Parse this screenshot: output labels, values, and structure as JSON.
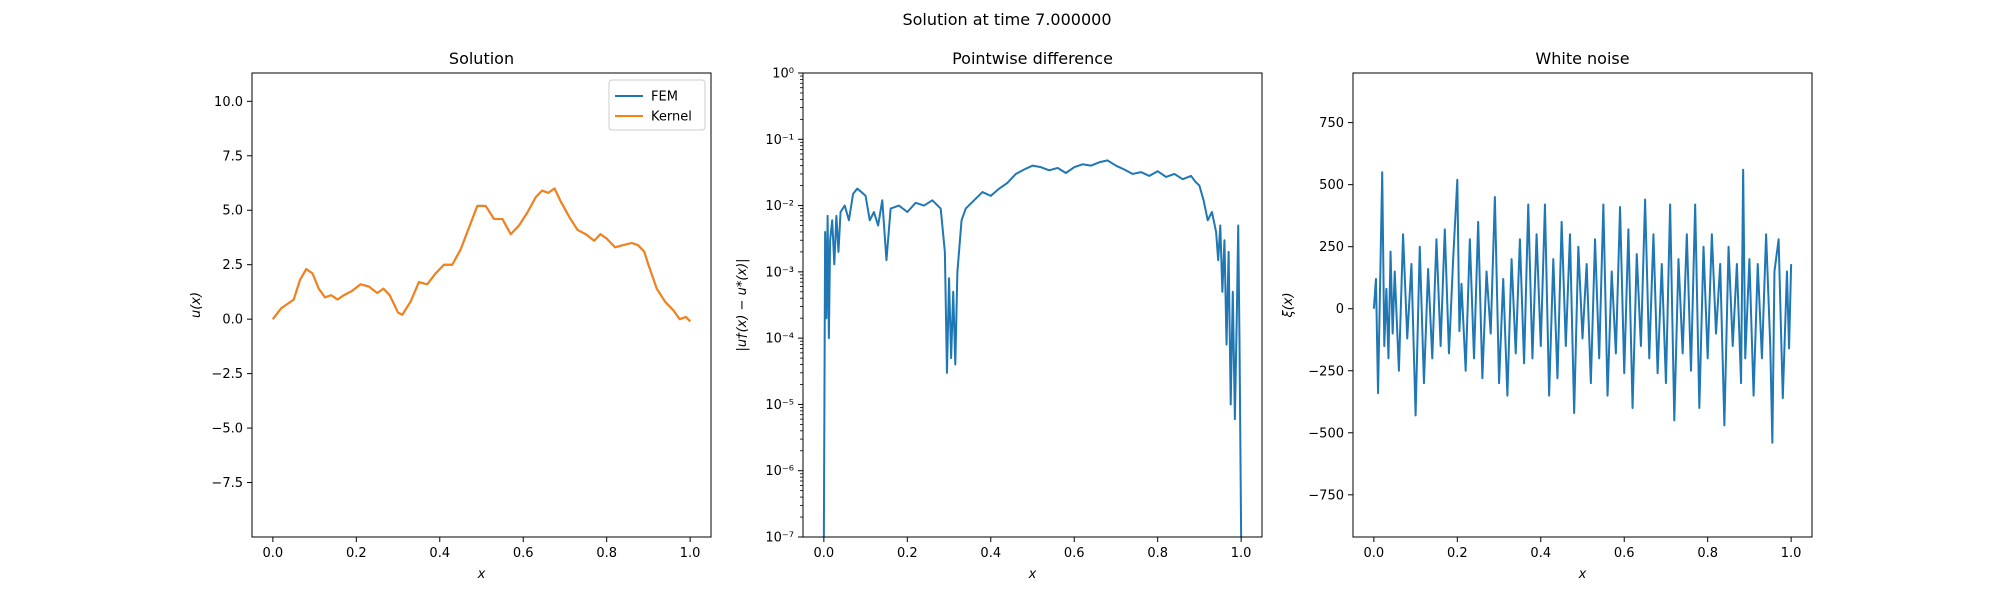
{
  "figure": {
    "suptitle": "Solution at time 7.000000"
  },
  "chart_data": [
    {
      "type": "line",
      "title": "Solution",
      "xlabel": "x",
      "ylabel": "u(x)",
      "xlim": [
        -0.05,
        1.05
      ],
      "ylim": [
        -10,
        11.3
      ],
      "xticks": [
        0.0,
        0.2,
        0.4,
        0.6,
        0.8,
        1.0
      ],
      "xtick_labels": [
        "0.0",
        "0.2",
        "0.4",
        "0.6",
        "0.8",
        "1.0"
      ],
      "yticks": [
        -7.5,
        -5.0,
        -2.5,
        0.0,
        2.5,
        5.0,
        7.5,
        10.0
      ],
      "ytick_labels": [
        "−7.5",
        "−5.0",
        "−2.5",
        "0.0",
        "2.5",
        "5.0",
        "7.5",
        "10.0"
      ],
      "legend_position": "top-right",
      "series": [
        {
          "name": "FEM",
          "color": "#1f77b4",
          "x": [
            0,
            0.02,
            0.05,
            0.065,
            0.08,
            0.095,
            0.11,
            0.125,
            0.14,
            0.155,
            0.17,
            0.19,
            0.21,
            0.23,
            0.25,
            0.265,
            0.28,
            0.3,
            0.31,
            0.33,
            0.35,
            0.37,
            0.39,
            0.41,
            0.43,
            0.45,
            0.47,
            0.49,
            0.51,
            0.53,
            0.55,
            0.57,
            0.59,
            0.61,
            0.63,
            0.645,
            0.66,
            0.675,
            0.69,
            0.71,
            0.73,
            0.75,
            0.77,
            0.785,
            0.8,
            0.82,
            0.84,
            0.86,
            0.875,
            0.89,
            0.9,
            0.92,
            0.94,
            0.96,
            0.975,
            0.99,
            1.0
          ],
          "values": [
            0.0,
            0.5,
            0.9,
            1.8,
            2.3,
            2.1,
            1.4,
            1.0,
            1.1,
            0.9,
            1.1,
            1.3,
            1.6,
            1.5,
            1.2,
            1.4,
            1.1,
            0.3,
            0.2,
            0.8,
            1.7,
            1.6,
            2.1,
            2.5,
            2.5,
            3.2,
            4.2,
            5.2,
            5.2,
            4.6,
            4.6,
            3.9,
            4.3,
            4.9,
            5.6,
            5.9,
            5.8,
            6.0,
            5.4,
            4.7,
            4.1,
            3.9,
            3.6,
            3.9,
            3.7,
            3.3,
            3.4,
            3.5,
            3.4,
            3.1,
            2.5,
            1.4,
            0.8,
            0.4,
            0.0,
            0.1,
            -0.1
          ]
        },
        {
          "name": "Kernel",
          "color": "#ff7f0e",
          "x": [
            0,
            0.02,
            0.05,
            0.065,
            0.08,
            0.095,
            0.11,
            0.125,
            0.14,
            0.155,
            0.17,
            0.19,
            0.21,
            0.23,
            0.25,
            0.265,
            0.28,
            0.3,
            0.31,
            0.33,
            0.35,
            0.37,
            0.39,
            0.41,
            0.43,
            0.45,
            0.47,
            0.49,
            0.51,
            0.53,
            0.55,
            0.57,
            0.59,
            0.61,
            0.63,
            0.645,
            0.66,
            0.675,
            0.69,
            0.71,
            0.73,
            0.75,
            0.77,
            0.785,
            0.8,
            0.82,
            0.84,
            0.86,
            0.875,
            0.89,
            0.9,
            0.92,
            0.94,
            0.96,
            0.975,
            0.99,
            1.0
          ],
          "values": [
            0.0,
            0.5,
            0.9,
            1.8,
            2.3,
            2.1,
            1.4,
            1.0,
            1.1,
            0.9,
            1.1,
            1.3,
            1.6,
            1.5,
            1.2,
            1.4,
            1.1,
            0.3,
            0.2,
            0.8,
            1.7,
            1.6,
            2.1,
            2.5,
            2.5,
            3.2,
            4.2,
            5.2,
            5.2,
            4.6,
            4.6,
            3.9,
            4.3,
            4.9,
            5.6,
            5.9,
            5.8,
            6.0,
            5.4,
            4.7,
            4.1,
            3.9,
            3.6,
            3.9,
            3.7,
            3.3,
            3.4,
            3.5,
            3.4,
            3.1,
            2.5,
            1.4,
            0.8,
            0.4,
            0.0,
            0.1,
            -0.1
          ]
        }
      ]
    },
    {
      "type": "line",
      "title": "Pointwise difference",
      "xlabel": "x",
      "ylabel": "|u†(x) − u*(x)|",
      "yscale": "log",
      "xlim": [
        -0.05,
        1.05
      ],
      "ylim": [
        1e-07,
        1
      ],
      "xticks": [
        0.0,
        0.2,
        0.4,
        0.6,
        0.8,
        1.0
      ],
      "xtick_labels": [
        "0.0",
        "0.2",
        "0.4",
        "0.6",
        "0.8",
        "1.0"
      ],
      "yticks": [
        1e-07,
        1e-06,
        1e-05,
        0.0001,
        0.001,
        0.01,
        0.1,
        1
      ],
      "ytick_labels": [
        "10⁻⁷",
        "10⁻⁶",
        "10⁻⁵",
        "10⁻⁴",
        "10⁻³",
        "10⁻²",
        "10⁻¹",
        "10⁰"
      ],
      "series": [
        {
          "color": "#1f77b4",
          "x": [
            0.0,
            0.003,
            0.006,
            0.009,
            0.012,
            0.015,
            0.02,
            0.025,
            0.03,
            0.035,
            0.04,
            0.05,
            0.06,
            0.07,
            0.08,
            0.09,
            0.1,
            0.11,
            0.12,
            0.13,
            0.14,
            0.15,
            0.16,
            0.18,
            0.2,
            0.22,
            0.24,
            0.26,
            0.28,
            0.29,
            0.295,
            0.3,
            0.305,
            0.31,
            0.315,
            0.32,
            0.33,
            0.34,
            0.36,
            0.38,
            0.4,
            0.42,
            0.44,
            0.46,
            0.48,
            0.5,
            0.52,
            0.54,
            0.56,
            0.58,
            0.6,
            0.62,
            0.64,
            0.66,
            0.68,
            0.7,
            0.72,
            0.74,
            0.76,
            0.78,
            0.8,
            0.82,
            0.84,
            0.86,
            0.88,
            0.89,
            0.9,
            0.91,
            0.92,
            0.93,
            0.94,
            0.945,
            0.95,
            0.955,
            0.96,
            0.965,
            0.97,
            0.975,
            0.98,
            0.985,
            0.99,
            0.993,
            0.996,
            1.0
          ],
          "values": [
            1e-07,
            0.004,
            0.0002,
            0.007,
            0.0001,
            0.003,
            0.006,
            0.0013,
            0.007,
            0.002,
            0.008,
            0.01,
            0.006,
            0.015,
            0.018,
            0.016,
            0.014,
            0.006,
            0.008,
            0.005,
            0.012,
            0.0015,
            0.009,
            0.01,
            0.008,
            0.011,
            0.01,
            0.012,
            0.009,
            0.002,
            3e-05,
            0.0008,
            5e-05,
            0.0005,
            4e-05,
            0.001,
            0.006,
            0.009,
            0.012,
            0.016,
            0.014,
            0.018,
            0.022,
            0.03,
            0.035,
            0.04,
            0.038,
            0.034,
            0.037,
            0.031,
            0.038,
            0.042,
            0.04,
            0.045,
            0.048,
            0.04,
            0.035,
            0.03,
            0.032,
            0.028,
            0.033,
            0.027,
            0.03,
            0.025,
            0.028,
            0.023,
            0.02,
            0.012,
            0.006,
            0.008,
            0.004,
            0.0015,
            0.005,
            0.0005,
            0.003,
            8e-05,
            0.002,
            1e-05,
            0.0005,
            6e-06,
            0.0003,
            0.005,
            0.0001,
            1e-07
          ]
        }
      ]
    },
    {
      "type": "line",
      "title": "White noise",
      "xlabel": "x",
      "ylabel": "ξ(x)",
      "xlim": [
        -0.05,
        1.05
      ],
      "ylim": [
        -920,
        950
      ],
      "xticks": [
        0.0,
        0.2,
        0.4,
        0.6,
        0.8,
        1.0
      ],
      "xtick_labels": [
        "0.0",
        "0.2",
        "0.4",
        "0.6",
        "0.8",
        "1.0"
      ],
      "yticks": [
        -750,
        -500,
        -250,
        0,
        250,
        500,
        750
      ],
      "ytick_labels": [
        "−750",
        "−500",
        "−250",
        "0",
        "250",
        "500",
        "750"
      ],
      "series": [
        {
          "color": "#1f77b4",
          "x": [
            0.0,
            0.005,
            0.01,
            0.015,
            0.02,
            0.025,
            0.03,
            0.035,
            0.04,
            0.045,
            0.05,
            0.06,
            0.07,
            0.08,
            0.09,
            0.1,
            0.11,
            0.12,
            0.13,
            0.14,
            0.15,
            0.16,
            0.17,
            0.18,
            0.19,
            0.2,
            0.205,
            0.21,
            0.22,
            0.23,
            0.24,
            0.25,
            0.26,
            0.27,
            0.28,
            0.29,
            0.3,
            0.31,
            0.32,
            0.33,
            0.34,
            0.35,
            0.36,
            0.37,
            0.38,
            0.39,
            0.4,
            0.41,
            0.42,
            0.43,
            0.44,
            0.45,
            0.46,
            0.47,
            0.48,
            0.49,
            0.5,
            0.51,
            0.52,
            0.53,
            0.54,
            0.55,
            0.56,
            0.57,
            0.58,
            0.59,
            0.6,
            0.61,
            0.62,
            0.63,
            0.64,
            0.65,
            0.66,
            0.67,
            0.68,
            0.69,
            0.7,
            0.71,
            0.72,
            0.73,
            0.74,
            0.75,
            0.76,
            0.77,
            0.78,
            0.79,
            0.8,
            0.81,
            0.82,
            0.83,
            0.84,
            0.85,
            0.86,
            0.87,
            0.88,
            0.885,
            0.89,
            0.9,
            0.91,
            0.92,
            0.93,
            0.94,
            0.95,
            0.955,
            0.96,
            0.97,
            0.98,
            0.99,
            0.995,
            1.0
          ],
          "values": [
            0,
            120,
            -340,
            100,
            550,
            -150,
            80,
            -200,
            230,
            -100,
            150,
            -250,
            300,
            -120,
            180,
            -430,
            250,
            -300,
            160,
            -200,
            280,
            -150,
            320,
            -180,
            200,
            520,
            -90,
            100,
            -250,
            280,
            -200,
            350,
            -280,
            150,
            -100,
            450,
            -300,
            120,
            -350,
            200,
            -180,
            280,
            -220,
            420,
            -200,
            300,
            -150,
            420,
            -350,
            200,
            -280,
            350,
            -150,
            300,
            -420,
            250,
            -120,
            180,
            -300,
            280,
            -200,
            420,
            -350,
            150,
            -180,
            410,
            -260,
            320,
            -400,
            220,
            -150,
            440,
            -200,
            300,
            -260,
            180,
            -300,
            420,
            -450,
            200,
            -180,
            300,
            -250,
            420,
            -400,
            250,
            -200,
            300,
            -100,
            180,
            -470,
            250,
            -150,
            180,
            -300,
            560,
            -200,
            200,
            -350,
            180,
            -200,
            300,
            -150,
            -540,
            150,
            280,
            -360,
            150,
            -160,
            180
          ]
        }
      ]
    }
  ]
}
